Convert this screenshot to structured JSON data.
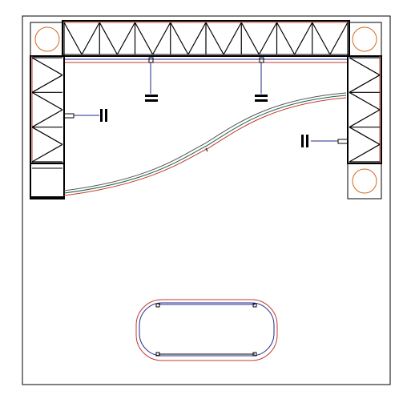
{
  "drawing": {
    "colors": {
      "frame": "#000000",
      "truss": "#000000",
      "outline_red": "#c0392b",
      "outline_blue": "#1f2a8a",
      "circle": "#d2691e",
      "curve_green": "#1f5f4f"
    },
    "elements": [
      {
        "name": "top-truss",
        "kind": "truss"
      },
      {
        "name": "left-truss",
        "kind": "truss"
      },
      {
        "name": "right-truss",
        "kind": "truss"
      },
      {
        "name": "corner-base-top-left",
        "kind": "base-plate"
      },
      {
        "name": "corner-base-top-right",
        "kind": "base-plate"
      },
      {
        "name": "corner-base-bottom-right",
        "kind": "base-plate"
      },
      {
        "name": "curved-track",
        "kind": "curve"
      },
      {
        "name": "light-fixtures",
        "kind": "fixture",
        "count": 4
      },
      {
        "name": "counter-pedestal",
        "kind": "rounded-counter"
      }
    ]
  }
}
